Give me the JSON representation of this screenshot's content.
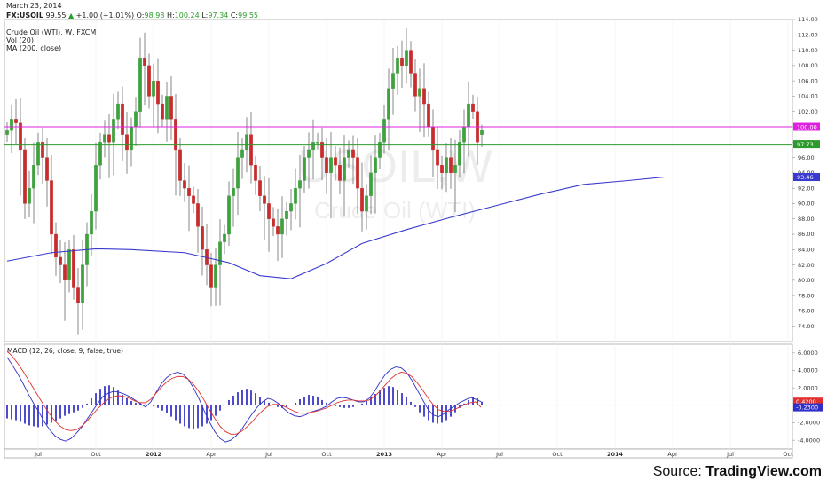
{
  "header": {
    "date": "March 23, 2014",
    "symbol": "FX:USOIL",
    "last": "99.55",
    "change_arrow": "▲",
    "change": "+1.00 (+1.01%)",
    "o_label": "O:",
    "o_value": "98.98",
    "h_label": "H:",
    "h_value": "100.24",
    "l_label": "L:",
    "l_value": "97.34",
    "c_label": "C:",
    "c_value": "99.55",
    "study_title": "Crude Oil (WTI), W, FXCM",
    "vol_label": "Vol (20)",
    "ma_label": "MA (200, close)"
  },
  "watermark": {
    "ticker": "USOIL,W",
    "name": "Crude Oil (WTI)"
  },
  "source": {
    "prefix": "Source: ",
    "brand": "TradingView.com"
  },
  "colors": {
    "up": "#3fa23f",
    "down": "#c82d2d",
    "ma": "#3a3ad0",
    "resistance": "#e020e0",
    "support": "#2e9a2e",
    "macd": "#3030c8",
    "signal": "#e03030",
    "hist": "#2020c0"
  },
  "chart_data": [
    {
      "type": "candlestick",
      "title": "Crude Oil (WTI), W, FXCM",
      "interval": "weekly",
      "ylim": [
        72,
        114
      ],
      "y_ticks": [
        "74.00",
        "76.00",
        "78.00",
        "80.00",
        "82.00",
        "84.00",
        "86.00",
        "88.00",
        "90.00",
        "92.00",
        "94.00",
        "96.00",
        "98.00",
        "100.00",
        "102.00",
        "104.00",
        "106.00",
        "108.00",
        "110.00",
        "112.00",
        "114.00"
      ],
      "x_ticks": [
        "Jul",
        "Oct",
        "2012",
        "Apr",
        "Jul",
        "Oct",
        "2013",
        "Apr",
        "Jul",
        "Oct",
        "2014",
        "Apr",
        "Jul",
        "Oct"
      ],
      "x_tick_weeks": [
        7,
        20,
        33,
        46,
        59,
        72,
        85,
        98,
        111,
        124,
        137,
        150,
        163,
        176
      ],
      "weekly_close": [
        99.5,
        101,
        100.5,
        97,
        90,
        92,
        95,
        98,
        96,
        93,
        86,
        83,
        82,
        80,
        84,
        79,
        77,
        82,
        86,
        89,
        95,
        98,
        99,
        98,
        101,
        103,
        99,
        97,
        100,
        102,
        109,
        108,
        104,
        106,
        103,
        101,
        104,
        101,
        97,
        93,
        92,
        91,
        90,
        87,
        84,
        82,
        79,
        82,
        85,
        86,
        91,
        92,
        96,
        97,
        99,
        95,
        93,
        91,
        90,
        88,
        87,
        86,
        88,
        89,
        90,
        92,
        93,
        96,
        97,
        98,
        98,
        96,
        94,
        96,
        95,
        93,
        96,
        97,
        96,
        92,
        89,
        91,
        94,
        96,
        98,
        101,
        105,
        107,
        109,
        108,
        110,
        107,
        104,
        105,
        103,
        100,
        97,
        95,
        94,
        96,
        94,
        95,
        98,
        100,
        103,
        102,
        98,
        99.55
      ],
      "weekly_open": [
        99,
        99.5,
        101,
        100.5,
        97,
        90,
        92,
        95,
        98,
        96,
        93,
        86,
        83,
        82,
        80,
        84,
        79,
        77,
        82,
        86,
        89,
        95,
        98,
        99,
        98,
        101,
        103,
        99,
        97,
        100,
        102,
        109,
        108,
        104,
        106,
        103,
        101,
        104,
        101,
        97,
        93,
        92,
        91,
        90,
        87,
        84,
        82,
        79,
        82,
        85,
        86,
        91,
        92,
        96,
        97,
        99,
        95,
        93,
        91,
        90,
        88,
        87,
        86,
        88,
        89,
        90,
        92,
        93,
        96,
        97,
        98,
        98,
        96,
        94,
        96,
        95,
        93,
        96,
        97,
        96,
        92,
        89,
        91,
        94,
        96,
        98,
        101,
        105,
        107,
        109,
        108,
        110,
        107,
        104,
        105,
        103,
        100,
        97,
        95,
        94,
        96,
        94,
        95,
        98,
        100,
        103,
        102,
        98.98
      ],
      "last_candle": {
        "open": 98.98,
        "high": 100.24,
        "low": 97.34,
        "close": 99.55
      },
      "ma_200": {
        "name": "MA (200, close)",
        "points": [
          [
            0,
            82.5
          ],
          [
            10,
            83.6
          ],
          [
            20,
            84.1
          ],
          [
            28,
            84
          ],
          [
            40,
            83.6
          ],
          [
            50,
            82.3
          ],
          [
            57,
            80.6
          ],
          [
            64,
            80.2
          ],
          [
            72,
            82.2
          ],
          [
            80,
            84.8
          ],
          [
            90,
            86.6
          ],
          [
            100,
            88.2
          ],
          [
            110,
            89.7
          ],
          [
            120,
            91.2
          ],
          [
            130,
            92.5
          ],
          [
            140,
            93
          ],
          [
            148,
            93.46
          ]
        ]
      },
      "horizontal_lines": [
        {
          "value": 100.0,
          "label": "100.00",
          "color": "#e020e0"
        },
        {
          "value": 97.73,
          "label": "97.73",
          "color": "#2e9a2e"
        }
      ],
      "price_tags": [
        {
          "value": 100.0,
          "label": "100.00"
        },
        {
          "value": 97.73,
          "label": "97.73"
        },
        {
          "value": 93.46,
          "label": "93.46"
        }
      ]
    },
    {
      "type": "macd",
      "label": "MACD (12, 26, close, 9, false, true)",
      "ylim": [
        -5,
        7
      ],
      "y_ticks": [
        "-4.0000",
        "-2.0000",
        "2.0000",
        "4.0000",
        "6.0000"
      ],
      "histogram": [
        -1.5,
        -1.6,
        -1.7,
        -1.9,
        -2.1,
        -2.3,
        -2.4,
        -2.5,
        -2.4,
        -2.2,
        -2,
        -1.8,
        -1.5,
        -1.2,
        -1,
        -0.8,
        -0.6,
        -0.3,
        0.2,
        0.8,
        1.4,
        1.9,
        2.2,
        2.3,
        2.1,
        1.7,
        1.2,
        0.8,
        0.5,
        0.3,
        0.2,
        0.1,
        0,
        -0.1,
        -0.3,
        -0.6,
        -0.9,
        -1.3,
        -1.7,
        -2.1,
        -2.4,
        -2.6,
        -2.7,
        -2.6,
        -2.4,
        -2.1,
        -1.7,
        -1.2,
        -0.6,
        0,
        0.6,
        1.1,
        1.5,
        1.8,
        1.9,
        1.7,
        1.4,
        1,
        0.6,
        0.3,
        0,
        -0.2,
        -0.3,
        -0.2,
        0,
        0.3,
        0.7,
        1,
        1.2,
        1.1,
        0.9,
        0.6,
        0.3,
        0.1,
        -0.1,
        -0.2,
        -0.3,
        -0.3,
        -0.2,
        0,
        0.2,
        0.5,
        0.9,
        1.3,
        1.7,
        2,
        2.2,
        2.1,
        1.8,
        1.4,
        0.9,
        0.4,
        -0.2,
        -0.8,
        -1.3,
        -1.7,
        -2,
        -2.1,
        -2,
        -1.7,
        -1.3,
        -0.8,
        -0.3,
        0.2,
        0.6,
        0.9,
        0.8,
        0.42
      ],
      "macd": [
        5.5,
        4.6,
        3.6,
        2.5,
        1.3,
        0.2,
        -0.8,
        -1.9,
        -2.8,
        -3.5,
        -3.9,
        -4.1,
        -3.8,
        -3.2,
        -2.5,
        -1.6,
        -0.7,
        0.2,
        1,
        1.4,
        1.6,
        1.5,
        1.3,
        1,
        0.6,
        0.2,
        -0.2,
        0.4,
        1.5,
        2.5,
        3.2,
        3.6,
        3.8,
        3.6,
        3,
        2,
        0.8,
        -0.6,
        -1.9,
        -3,
        -3.8,
        -4.2,
        -4,
        -3.5,
        -2.8,
        -1.9,
        -1,
        -0.2,
        0.4,
        0.8,
        0.6,
        0.2,
        -0.4,
        -0.9,
        -1.2,
        -1.3,
        -1.1,
        -0.8,
        -0.6,
        -0.4,
        -0.1,
        0.4,
        0.8,
        0.9,
        0.8,
        0.6,
        0.4,
        0.4,
        0.8,
        1.6,
        2.6,
        3.5,
        4.1,
        4.4,
        4.3,
        3.8,
        2.9,
        1.8,
        0.7,
        -0.4,
        -1.1,
        -1.3,
        -1,
        -0.5,
        -0.1,
        0.3,
        0.6,
        0.9,
        0.7,
        0.42
      ],
      "signal": [
        6.2,
        5.6,
        4.8,
        3.9,
        2.9,
        1.9,
        0.9,
        -0.1,
        -1,
        -1.8,
        -2.4,
        -2.8,
        -2.9,
        -2.8,
        -2.4,
        -1.8,
        -1.1,
        -0.4,
        0.2,
        0.7,
        1,
        1.1,
        1,
        0.8,
        0.5,
        0.3,
        0.3,
        0.7,
        1.4,
        2.1,
        2.7,
        3.1,
        3.3,
        3.3,
        3,
        2.4,
        1.6,
        0.6,
        -0.5,
        -1.5,
        -2.4,
        -3,
        -3.3,
        -3.3,
        -3,
        -2.5,
        -1.9,
        -1.2,
        -0.6,
        -0.1,
        0.1,
        0.1,
        -0.1,
        -0.4,
        -0.7,
        -0.9,
        -0.9,
        -0.8,
        -0.7,
        -0.5,
        -0.3,
        0,
        0.3,
        0.5,
        0.6,
        0.6,
        0.5,
        0.5,
        0.6,
        1,
        1.6,
        2.3,
        3,
        3.5,
        3.8,
        3.7,
        3.3,
        2.6,
        1.8,
        0.9,
        0.1,
        -0.5,
        -0.7,
        -0.7,
        -0.5,
        -0.2,
        0.1,
        0.3,
        0.4,
        -0.23
      ]
    }
  ]
}
